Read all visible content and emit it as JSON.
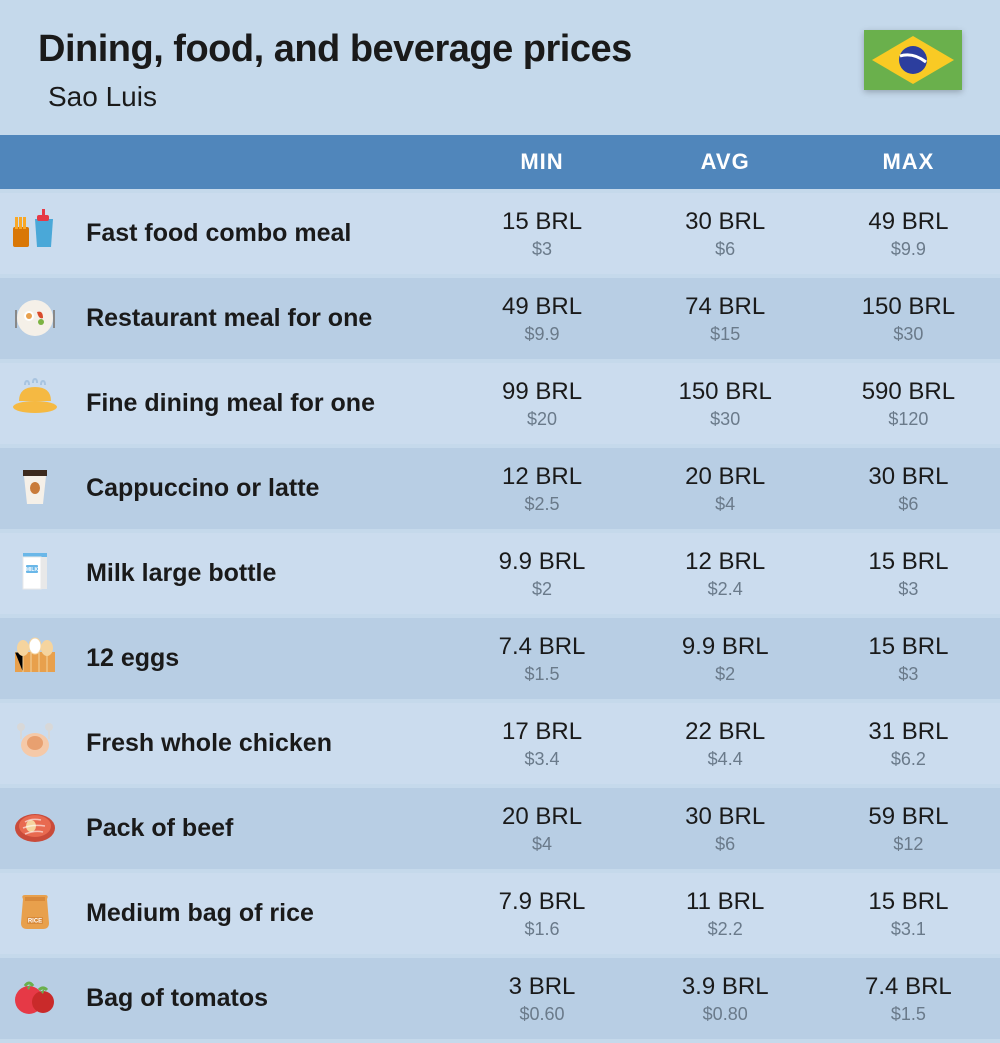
{
  "title": "Dining, food, and beverage prices",
  "subtitle": "Sao Luis",
  "columns": {
    "c1": "MIN",
    "c2": "AVG",
    "c3": "MAX"
  },
  "colors": {
    "page_bg": "#c5d9eb",
    "header_bg": "#5086bb",
    "header_text": "#ffffff",
    "row_odd": "#cbdcee",
    "row_even": "#b8cee4",
    "text_main": "#1a1a1a",
    "text_sub": "#6a7a8a"
  },
  "flag": {
    "bg": "#6ab04c",
    "diamond": "#f9ca24",
    "circle": "#2c3e9e",
    "band": "#ffffff"
  },
  "typography": {
    "title_fontsize": 38,
    "subtitle_fontsize": 28,
    "header_fontsize": 22,
    "item_fontsize": 25,
    "price_fontsize": 24,
    "sub_fontsize": 18
  },
  "rows": [
    {
      "icon": "fastfood",
      "name": "Fast food combo meal",
      "min_brl": "15 BRL",
      "min_usd": "$3",
      "avg_brl": "30 BRL",
      "avg_usd": "$6",
      "max_brl": "49 BRL",
      "max_usd": "$9.9"
    },
    {
      "icon": "restaurant",
      "name": "Restaurant meal for one",
      "min_brl": "49 BRL",
      "min_usd": "$9.9",
      "avg_brl": "74 BRL",
      "avg_usd": "$15",
      "max_brl": "150 BRL",
      "max_usd": "$30"
    },
    {
      "icon": "finedining",
      "name": "Fine dining meal for one",
      "min_brl": "99 BRL",
      "min_usd": "$20",
      "avg_brl": "150 BRL",
      "avg_usd": "$30",
      "max_brl": "590 BRL",
      "max_usd": "$120"
    },
    {
      "icon": "coffee",
      "name": "Cappuccino or latte",
      "min_brl": "12 BRL",
      "min_usd": "$2.5",
      "avg_brl": "20 BRL",
      "avg_usd": "$4",
      "max_brl": "30 BRL",
      "max_usd": "$6"
    },
    {
      "icon": "milk",
      "name": "Milk large bottle",
      "min_brl": "9.9 BRL",
      "min_usd": "$2",
      "avg_brl": "12 BRL",
      "avg_usd": "$2.4",
      "max_brl": "15 BRL",
      "max_usd": "$3"
    },
    {
      "icon": "eggs",
      "name": "12 eggs",
      "min_brl": "7.4 BRL",
      "min_usd": "$1.5",
      "avg_brl": "9.9 BRL",
      "avg_usd": "$2",
      "max_brl": "15 BRL",
      "max_usd": "$3"
    },
    {
      "icon": "chicken",
      "name": "Fresh whole chicken",
      "min_brl": "17 BRL",
      "min_usd": "$3.4",
      "avg_brl": "22 BRL",
      "avg_usd": "$4.4",
      "max_brl": "31 BRL",
      "max_usd": "$6.2"
    },
    {
      "icon": "beef",
      "name": "Pack of beef",
      "min_brl": "20 BRL",
      "min_usd": "$4",
      "avg_brl": "30 BRL",
      "avg_usd": "$6",
      "max_brl": "59 BRL",
      "max_usd": "$12"
    },
    {
      "icon": "rice",
      "name": "Medium bag of rice",
      "min_brl": "7.9 BRL",
      "min_usd": "$1.6",
      "avg_brl": "11 BRL",
      "avg_usd": "$2.2",
      "max_brl": "15 BRL",
      "max_usd": "$3.1"
    },
    {
      "icon": "tomato",
      "name": "Bag of tomatos",
      "min_brl": "3 BRL",
      "min_usd": "$0.60",
      "avg_brl": "3.9 BRL",
      "avg_usd": "$0.80",
      "max_brl": "7.4 BRL",
      "max_usd": "$1.5"
    }
  ],
  "icons": {
    "fastfood": {
      "colors": [
        "#f9a826",
        "#d97706",
        "#4aa8d8",
        "#e63946"
      ]
    },
    "restaurant": {
      "colors": [
        "#f5f0e8",
        "#e8a04c",
        "#d94b2b",
        "#7cb342"
      ]
    },
    "finedining": {
      "colors": [
        "#a8c4e0",
        "#f5b942",
        "#8ab8d8"
      ]
    },
    "coffee": {
      "colors": [
        "#3c2a1e",
        "#f5f0e8",
        "#c97b3a"
      ]
    },
    "milk": {
      "colors": [
        "#6ab7e8",
        "#ffffff",
        "#e8e8e8"
      ]
    },
    "eggs": {
      "colors": [
        "#e8a04c",
        "#f5d49e",
        "#ffffff"
      ]
    },
    "chicken": {
      "colors": [
        "#f5c9a8",
        "#e8a070",
        "#d8d8d8"
      ]
    },
    "beef": {
      "colors": [
        "#c94b3a",
        "#e86a50",
        "#f5d49e"
      ]
    },
    "rice": {
      "colors": [
        "#e8a04c",
        "#d88a3a",
        "#ffffff"
      ]
    },
    "tomato": {
      "colors": [
        "#e63946",
        "#c92a2a",
        "#6ab04c"
      ]
    }
  }
}
